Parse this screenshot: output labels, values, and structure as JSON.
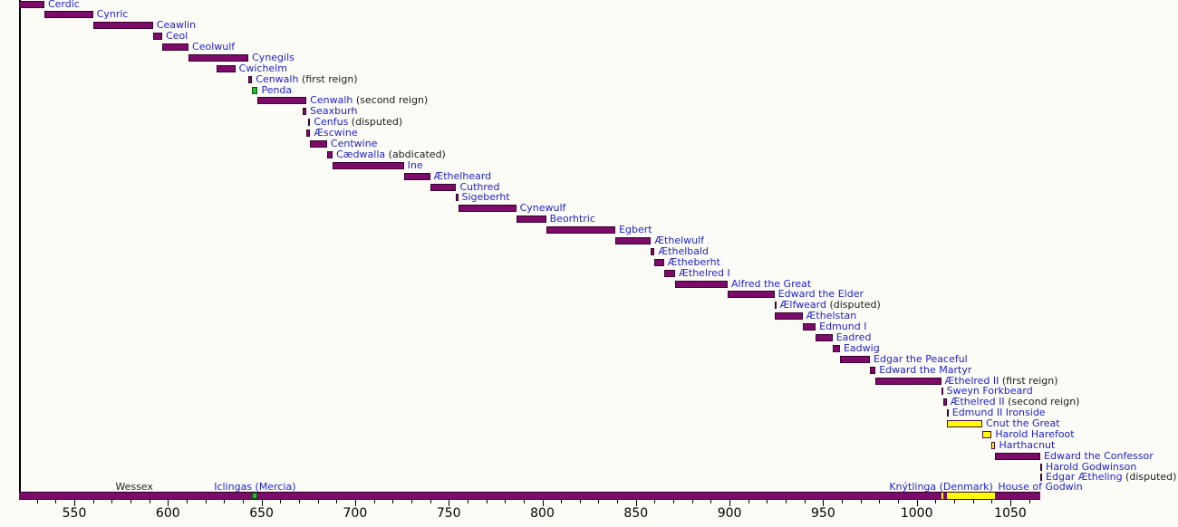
{
  "chart_data": {
    "type": "bar",
    "subtype": "horizontal-timeline-gantt",
    "title": "",
    "x_axis": {
      "min": 519,
      "max": 1066,
      "minor_tick_step": 10,
      "minor_tick_start": 530,
      "minor_tick_end": 1060,
      "major_tick_step": 50,
      "tick_label_years": [
        550,
        600,
        650,
        700,
        750,
        800,
        850,
        900,
        950,
        1000,
        1050
      ],
      "tick_labels": [
        "550",
        "600",
        "650",
        "700",
        "750",
        "800",
        "850",
        "900",
        "950",
        "1000",
        "1050"
      ]
    },
    "colors": {
      "wessex": "#7b0c69",
      "wessex_border": "#3a0030",
      "denmark": "#ffff00",
      "denmark_border": "#50064a",
      "mercia": "#2eb82e",
      "mercia_border": "#0a4d0a",
      "link_blue": "#2121cc",
      "text_black": "#1a1a1a",
      "background": "#fcfcf7"
    },
    "reigns": [
      {
        "label": "Cerdic",
        "note": "",
        "start": 519,
        "end": 534,
        "dynasty": "wessex"
      },
      {
        "label": "Cynric",
        "note": "",
        "start": 534,
        "end": 560,
        "dynasty": "wessex"
      },
      {
        "label": "Ceawlin",
        "note": "",
        "start": 560,
        "end": 592,
        "dynasty": "wessex"
      },
      {
        "label": "Ceol",
        "note": "",
        "start": 592,
        "end": 597,
        "dynasty": "wessex"
      },
      {
        "label": "Ceolwulf",
        "note": "",
        "start": 597,
        "end": 611,
        "dynasty": "wessex"
      },
      {
        "label": "Cynegils",
        "note": "",
        "start": 611,
        "end": 643,
        "dynasty": "wessex"
      },
      {
        "label": "Cwichelm",
        "note": "",
        "start": 626,
        "end": 636,
        "dynasty": "wessex"
      },
      {
        "label": "Cenwalh",
        "note": "(first reign)",
        "start": 643,
        "end": 645,
        "dynasty": "wessex"
      },
      {
        "label": "Penda",
        "note": "",
        "start": 645,
        "end": 648,
        "dynasty": "mercia"
      },
      {
        "label": "Cenwalh",
        "note": "(second reign)",
        "start": 648,
        "end": 674,
        "dynasty": "wessex"
      },
      {
        "label": "Seaxburh",
        "note": "",
        "start": 672,
        "end": 674,
        "dynasty": "wessex"
      },
      {
        "label": "Cenfus",
        "note": "(disputed)",
        "start": 675,
        "end": 676,
        "dynasty": "wessex"
      },
      {
        "label": "Æscwine",
        "note": "",
        "start": 674,
        "end": 676,
        "dynasty": "wessex"
      },
      {
        "label": "Centwine",
        "note": "",
        "start": 676,
        "end": 685,
        "dynasty": "wessex"
      },
      {
        "label": "Cædwalla",
        "note": "(abdicated)",
        "start": 685,
        "end": 688,
        "dynasty": "wessex"
      },
      {
        "label": "Ine",
        "note": "",
        "start": 688,
        "end": 726,
        "dynasty": "wessex"
      },
      {
        "label": "Æthelheard",
        "note": "",
        "start": 726,
        "end": 740,
        "dynasty": "wessex"
      },
      {
        "label": "Cuthred",
        "note": "",
        "start": 740,
        "end": 754,
        "dynasty": "wessex"
      },
      {
        "label": "Sigeberht",
        "note": "",
        "start": 754,
        "end": 755,
        "dynasty": "wessex"
      },
      {
        "label": "Cynewulf",
        "note": "",
        "start": 755,
        "end": 786,
        "dynasty": "wessex"
      },
      {
        "label": "Beorhtric",
        "note": "",
        "start": 786,
        "end": 802,
        "dynasty": "wessex"
      },
      {
        "label": "Egbert",
        "note": "",
        "start": 802,
        "end": 839,
        "dynasty": "wessex"
      },
      {
        "label": "Æthelwulf",
        "note": "",
        "start": 839,
        "end": 858,
        "dynasty": "wessex"
      },
      {
        "label": "Æthelbald",
        "note": "",
        "start": 858,
        "end": 860,
        "dynasty": "wessex"
      },
      {
        "label": "Ætheberht",
        "note": "",
        "start": 860,
        "end": 865,
        "dynasty": "wessex"
      },
      {
        "label": "Æthelred I",
        "note": "",
        "start": 865,
        "end": 871,
        "dynasty": "wessex"
      },
      {
        "label": "Alfred the Great",
        "note": "",
        "start": 871,
        "end": 899,
        "dynasty": "wessex"
      },
      {
        "label": "Edward the Elder",
        "note": "",
        "start": 899,
        "end": 924,
        "dynasty": "wessex"
      },
      {
        "label": "Ælfweard",
        "note": "(disputed)",
        "start": 924,
        "end": 924,
        "dynasty": "wessex"
      },
      {
        "label": "Æthelstan",
        "note": "",
        "start": 924,
        "end": 939,
        "dynasty": "wessex"
      },
      {
        "label": "Edmund I",
        "note": "",
        "start": 939,
        "end": 946,
        "dynasty": "wessex"
      },
      {
        "label": "Eadred",
        "note": "",
        "start": 946,
        "end": 955,
        "dynasty": "wessex"
      },
      {
        "label": "Eadwig",
        "note": "",
        "start": 955,
        "end": 959,
        "dynasty": "wessex"
      },
      {
        "label": "Edgar the Peaceful",
        "note": "",
        "start": 959,
        "end": 975,
        "dynasty": "wessex"
      },
      {
        "label": "Edward the Martyr",
        "note": "",
        "start": 975,
        "end": 978,
        "dynasty": "wessex"
      },
      {
        "label": "Æthelred II",
        "note": "(first reign)",
        "start": 978,
        "end": 1013,
        "dynasty": "wessex"
      },
      {
        "label": "Sweyn Forkbeard",
        "note": "",
        "start": 1013,
        "end": 1014,
        "dynasty": "denmark"
      },
      {
        "label": "Æthelred II",
        "note": "(second reign)",
        "start": 1014,
        "end": 1016,
        "dynasty": "wessex"
      },
      {
        "label": "Edmund II Ironside",
        "note": "",
        "start": 1016,
        "end": 1016,
        "dynasty": "wessex"
      },
      {
        "label": "Cnut the Great",
        "note": "",
        "start": 1016,
        "end": 1035,
        "dynasty": "denmark"
      },
      {
        "label": "Harold Harefoot",
        "note": "",
        "start": 1035,
        "end": 1040,
        "dynasty": "denmark"
      },
      {
        "label": "Harthacnut",
        "note": "",
        "start": 1040,
        "end": 1042,
        "dynasty": "denmark"
      },
      {
        "label": "Edward the Confessor",
        "note": "",
        "start": 1042,
        "end": 1066,
        "dynasty": "wessex"
      },
      {
        "label": "Harold Godwinson",
        "note": "",
        "start": 1066,
        "end": 1066,
        "dynasty": "wessex"
      },
      {
        "label": "Edgar Ætheling",
        "note": "(disputed)",
        "start": 1066,
        "end": 1066,
        "dynasty": "wessex"
      }
    ],
    "dynasty_bar": {
      "segments": [
        {
          "start": 519,
          "end": 1013,
          "dynasty": "wessex"
        },
        {
          "start": 1013,
          "end": 1014,
          "dynasty": "denmark"
        },
        {
          "start": 1014,
          "end": 1016,
          "dynasty": "wessex"
        },
        {
          "start": 1016,
          "end": 1042,
          "dynasty": "denmark"
        },
        {
          "start": 1042,
          "end": 1066,
          "dynasty": "wessex"
        },
        {
          "start": 645,
          "end": 648,
          "dynasty": "mercia"
        }
      ],
      "labels": [
        {
          "text": "Wessex",
          "center_year": 582,
          "style": "plain"
        },
        {
          "text": "Iclingas (Mercia)",
          "center_year": 646.5,
          "style": "link"
        },
        {
          "text": "Knýtlinga (Denmark)",
          "center_year": 1013,
          "style": "link"
        },
        {
          "text": "House of Godwin",
          "center_year": 1066,
          "style": "link"
        }
      ]
    }
  }
}
